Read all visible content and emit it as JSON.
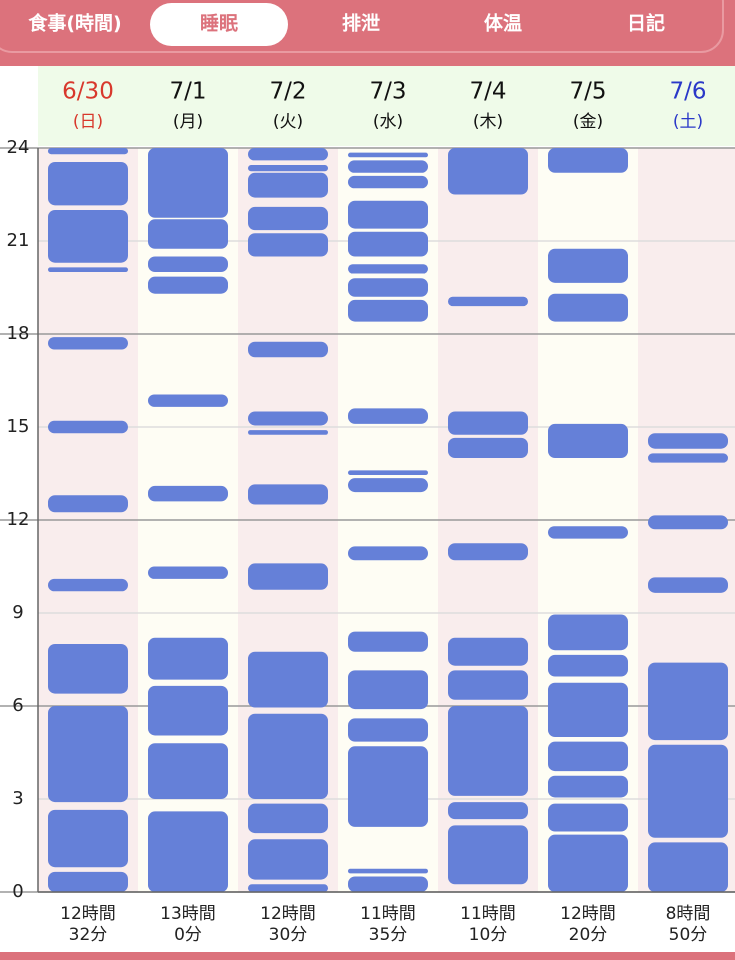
{
  "tabs": {
    "items": [
      "食事(時間)",
      "睡眠",
      "排泄",
      "体温",
      "日記"
    ],
    "selected": 1
  },
  "chart_data": {
    "type": "sleep-blocks",
    "ylim": [
      0,
      24
    ],
    "yticks": [
      0,
      3,
      6,
      9,
      12,
      15,
      18,
      21,
      24
    ],
    "color": "#6580d8",
    "days": [
      {
        "date": "6/30",
        "weekday": "(日)",
        "color": "#d8382c",
        "total": [
          "12時間",
          "32分"
        ],
        "blocks": [
          [
            0,
            0.65
          ],
          [
            0.8,
            2.65
          ],
          [
            2.9,
            6.0
          ],
          [
            6.4,
            8.0
          ],
          [
            9.7,
            10.1
          ],
          [
            12.25,
            12.8
          ],
          [
            14.8,
            15.2
          ],
          [
            17.5,
            17.9
          ],
          [
            20.0,
            20.15
          ],
          [
            20.3,
            22.0
          ],
          [
            22.15,
            23.55
          ],
          [
            23.8,
            24
          ]
        ]
      },
      {
        "date": "7/1",
        "weekday": "(月)",
        "color": "#111111",
        "total": [
          "13時間",
          "0分"
        ],
        "blocks": [
          [
            0,
            2.6
          ],
          [
            3.0,
            4.8
          ],
          [
            5.05,
            6.65
          ],
          [
            6.85,
            8.2
          ],
          [
            10.1,
            10.5
          ],
          [
            12.6,
            13.1
          ],
          [
            15.65,
            16.05
          ],
          [
            19.3,
            19.85
          ],
          [
            20.0,
            20.5
          ],
          [
            20.75,
            21.7
          ],
          [
            21.75,
            24
          ]
        ]
      },
      {
        "date": "7/2",
        "weekday": "(火)",
        "color": "#111111",
        "total": [
          "12時間",
          "30分"
        ],
        "blocks": [
          [
            0,
            0.25
          ],
          [
            0.4,
            1.7
          ],
          [
            1.9,
            2.85
          ],
          [
            3.0,
            5.75
          ],
          [
            5.95,
            7.75
          ],
          [
            9.75,
            10.6
          ],
          [
            12.5,
            13.15
          ],
          [
            14.75,
            14.9
          ],
          [
            15.05,
            15.5
          ],
          [
            17.25,
            17.75
          ],
          [
            20.5,
            21.25
          ],
          [
            21.35,
            22.1
          ],
          [
            22.4,
            23.2
          ],
          [
            23.25,
            23.45
          ],
          [
            23.6,
            24
          ]
        ]
      },
      {
        "date": "7/3",
        "weekday": "(水)",
        "color": "#111111",
        "total": [
          "11時間",
          "35分"
        ],
        "blocks": [
          [
            0,
            0.5
          ],
          [
            0.6,
            0.75
          ],
          [
            2.1,
            4.7
          ],
          [
            4.85,
            5.6
          ],
          [
            5.9,
            7.15
          ],
          [
            7.75,
            8.4
          ],
          [
            10.7,
            11.15
          ],
          [
            12.9,
            13.35
          ],
          [
            13.45,
            13.6
          ],
          [
            15.1,
            15.6
          ],
          [
            18.4,
            19.1
          ],
          [
            19.2,
            19.8
          ],
          [
            19.95,
            20.25
          ],
          [
            20.5,
            21.3
          ],
          [
            21.4,
            22.3
          ],
          [
            22.7,
            23.1
          ],
          [
            23.2,
            23.6
          ],
          [
            23.7,
            23.85
          ]
        ]
      },
      {
        "date": "7/4",
        "weekday": "(木)",
        "color": "#111111",
        "total": [
          "11時間",
          "10分"
        ],
        "blocks": [
          [
            0.25,
            2.15
          ],
          [
            2.35,
            2.9
          ],
          [
            3.1,
            6.0
          ],
          [
            6.2,
            7.15
          ],
          [
            7.3,
            8.2
          ],
          [
            10.7,
            11.25
          ],
          [
            14.0,
            14.65
          ],
          [
            14.75,
            15.5
          ],
          [
            18.9,
            19.2
          ],
          [
            22.5,
            24
          ]
        ]
      },
      {
        "date": "7/5",
        "weekday": "(金)",
        "color": "#111111",
        "total": [
          "12時間",
          "20分"
        ],
        "blocks": [
          [
            0,
            1.85
          ],
          [
            1.95,
            2.85
          ],
          [
            3.05,
            3.75
          ],
          [
            3.9,
            4.85
          ],
          [
            5.0,
            6.75
          ],
          [
            6.95,
            7.65
          ],
          [
            7.8,
            8.95
          ],
          [
            11.4,
            11.8
          ],
          [
            14.0,
            15.1
          ],
          [
            18.4,
            19.3
          ],
          [
            19.65,
            20.75
          ],
          [
            23.2,
            24
          ]
        ]
      },
      {
        "date": "7/6",
        "weekday": "(土)",
        "color": "#2a38c8",
        "total": [
          "8時間",
          "50分"
        ],
        "blocks": [
          [
            0,
            1.6
          ],
          [
            1.75,
            4.75
          ],
          [
            4.9,
            7.4
          ],
          [
            9.65,
            10.15
          ],
          [
            11.7,
            12.15
          ],
          [
            13.85,
            14.15
          ],
          [
            14.3,
            14.8
          ]
        ]
      }
    ]
  }
}
